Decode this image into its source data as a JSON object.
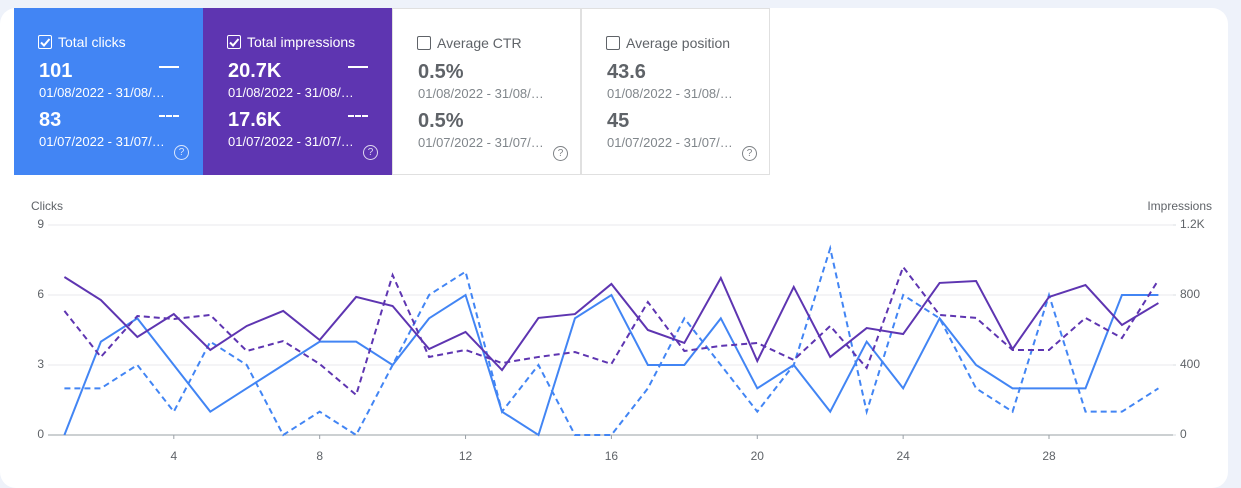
{
  "cards": [
    {
      "label": "Total clicks",
      "checked": true,
      "color": "#4285f4",
      "value": "101",
      "date": "01/08/2022 - 31/08/…",
      "prev_value": "83",
      "prev_date": "01/07/2022 - 31/07/…"
    },
    {
      "label": "Total impressions",
      "checked": true,
      "color": "#5e35b1",
      "value": "20.7K",
      "date": "01/08/2022 - 31/08/…",
      "prev_value": "17.6K",
      "prev_date": "01/07/2022 - 31/07/…"
    },
    {
      "label": "Average CTR",
      "checked": false,
      "value": "0.5%",
      "date": "01/08/2022 - 31/08/…",
      "prev_value": "0.5%",
      "prev_date": "01/07/2022 - 31/07/…"
    },
    {
      "label": "Average position",
      "checked": false,
      "value": "43.6",
      "date": "01/08/2022 - 31/08/…",
      "prev_value": "45",
      "prev_date": "01/07/2022 - 31/07/…"
    }
  ],
  "chart_data": {
    "type": "line",
    "y_label": "Clicks",
    "y2_label": "Impressions",
    "x": [
      1,
      2,
      3,
      4,
      5,
      6,
      7,
      8,
      9,
      10,
      11,
      12,
      13,
      14,
      15,
      16,
      17,
      18,
      19,
      20,
      21,
      22,
      23,
      24,
      25,
      26,
      27,
      28,
      29,
      30,
      31
    ],
    "xlim": [
      0.55,
      31.4
    ],
    "xticks": [
      4,
      8,
      12,
      16,
      20,
      24,
      28
    ],
    "ylim": [
      0,
      9
    ],
    "yticks": [
      0,
      3,
      6,
      9
    ],
    "y2lim": [
      0,
      1200
    ],
    "y2ticks": [
      0,
      400,
      800,
      {
        "value": 1200,
        "label": "1.2K"
      }
    ],
    "grid": true,
    "series": [
      {
        "color": "#4285f4",
        "dashed": false,
        "values": [
          0,
          4,
          5,
          3,
          1,
          2,
          3,
          4,
          4,
          3,
          5,
          6,
          1,
          0,
          5,
          6,
          3,
          3,
          5,
          2,
          3,
          1,
          4,
          2,
          5,
          3,
          2,
          2,
          2,
          6,
          6
        ]
      },
      {
        "color": "#4285f4",
        "dashed": true,
        "values": [
          2,
          2,
          3,
          1,
          4,
          3,
          0,
          1,
          0,
          3,
          6,
          7,
          1,
          3,
          0,
          0,
          2,
          5,
          3,
          1,
          3,
          8,
          1,
          6,
          5,
          2,
          1,
          6,
          1,
          1,
          2
        ]
      },
      {
        "color": "#5e35b1",
        "dashed": false,
        "axis": "y2",
        "values": [
          903,
          771,
          560,
          691,
          486,
          623,
          709,
          543,
          789,
          737,
          491,
          589,
          371,
          669,
          691,
          863,
          600,
          526,
          897,
          423,
          846,
          446,
          611,
          577,
          869,
          880,
          491,
          789,
          857,
          629,
          754
        ]
      },
      {
        "color": "#5e35b1",
        "dashed": true,
        "axis": "y2",
        "values": [
          709,
          446,
          680,
          663,
          686,
          480,
          537,
          406,
          229,
          914,
          446,
          486,
          411,
          446,
          474,
          406,
          760,
          480,
          509,
          526,
          429,
          623,
          383,
          960,
          686,
          669,
          486,
          486,
          669,
          554,
          886
        ]
      }
    ]
  }
}
